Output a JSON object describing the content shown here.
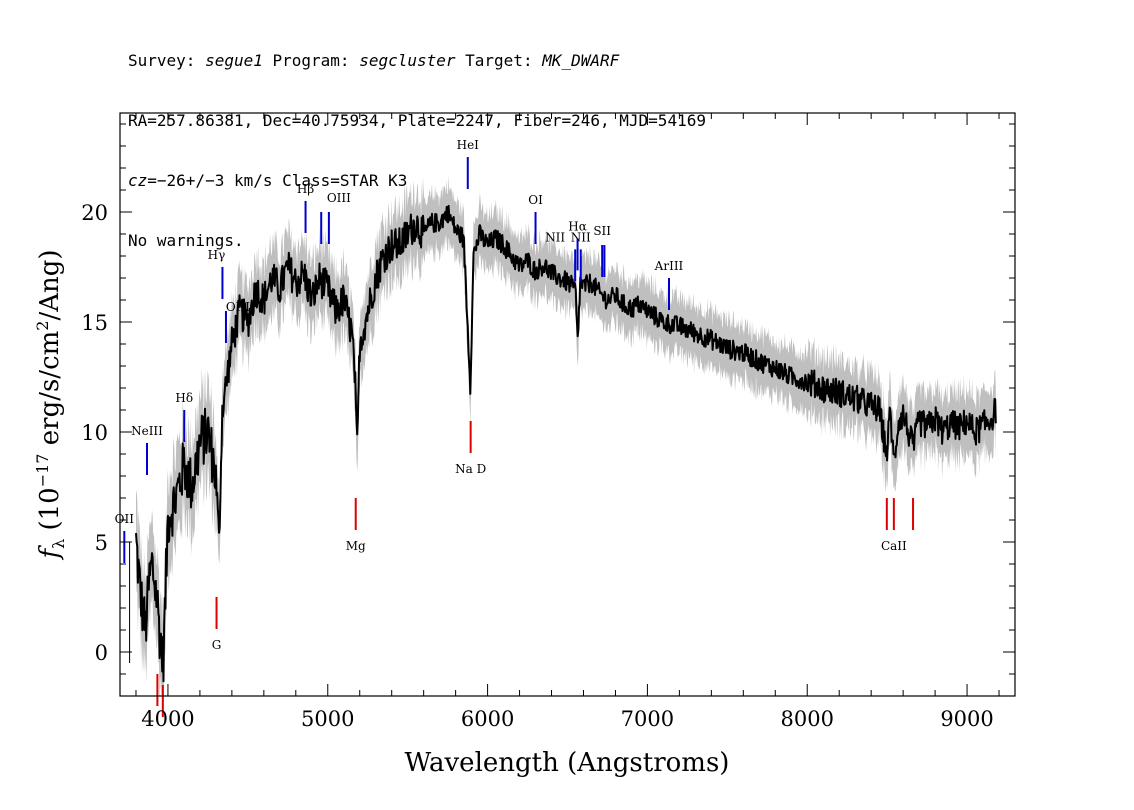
{
  "header": {
    "line1": {
      "survey_label": "Survey: ",
      "survey": "segue1",
      "program_label": " Program: ",
      "program": "segcluster",
      "target_label": " Target: ",
      "target": "MK_DWARF"
    },
    "line2": "RA=257.86381, Dec=40.75934, Plate=2247, Fiber=246, MJD=54169",
    "line3": {
      "cz_label": "cz",
      "cz_value": "=−26+/−3",
      "rest": " km/s Class=STAR K3"
    },
    "line4": "No warnings."
  },
  "colors": {
    "flux": "#000000",
    "error_band": "#bfbfbf",
    "emission": "#0000cc",
    "absorption": "#dd0000"
  },
  "chart_data": {
    "type": "line",
    "xlabel": "Wavelength (Angstroms)",
    "ylabel": "f_λ (10^-17 erg/s/cm^2/Ang)",
    "ylabel_parts": {
      "f": "f",
      "lambda": "λ",
      "open": " (10",
      "exp": "−17",
      "mid": " erg/s/cm",
      "exp2": "2",
      "close": "/Ang)"
    },
    "xlim": [
      3700,
      9300
    ],
    "ylim": [
      -2,
      24.5
    ],
    "xticks": [
      4000,
      5000,
      6000,
      7000,
      8000,
      9000
    ],
    "yticks": [
      0,
      5,
      10,
      15,
      20
    ],
    "series": [
      {
        "x": [
          3800,
          3830,
          3860,
          3880,
          3900,
          3930,
          3950,
          3970,
          4000,
          4050,
          4100,
          4150,
          4200,
          4250,
          4300,
          4320,
          4340,
          4400,
          4450,
          4500,
          4550,
          4600,
          4650,
          4700,
          4750,
          4800,
          4850,
          4900,
          4950,
          5000,
          5050,
          5100,
          5150,
          5170,
          5183,
          5200,
          5250,
          5300,
          5350,
          5400,
          5450,
          5500,
          5550,
          5600,
          5650,
          5700,
          5750,
          5800,
          5850,
          5880,
          5893,
          5910,
          5950,
          6000,
          6050,
          6100,
          6150,
          6200,
          6250,
          6300,
          6350,
          6400,
          6450,
          6500,
          6550,
          6563,
          6580,
          6600,
          6650,
          6700,
          6750,
          6800,
          6850,
          6900,
          6950,
          7000,
          7100,
          7200,
          7300,
          7400,
          7500,
          7600,
          7700,
          7800,
          7900,
          8000,
          8100,
          8200,
          8300,
          8400,
          8450,
          8498,
          8520,
          8542,
          8570,
          8600,
          8662,
          8700,
          8750,
          8800,
          8850,
          8900,
          8950,
          9000,
          9050,
          9100,
          9150,
          9180
        ],
        "y": [
          5.0,
          2.5,
          1.0,
          3.0,
          4.0,
          2.5,
          0.8,
          -0.5,
          6.0,
          7.0,
          8.5,
          7.5,
          9.5,
          10.0,
          8.0,
          5.0,
          11.0,
          14.0,
          15.5,
          15.0,
          16.5,
          16.0,
          17.0,
          16.5,
          17.5,
          16.8,
          17.2,
          16.0,
          17.0,
          16.5,
          15.5,
          16.0,
          14.5,
          12.5,
          9.0,
          14.0,
          15.5,
          17.0,
          18.0,
          18.5,
          18.5,
          19.0,
          19.5,
          19.0,
          19.5,
          19.5,
          20.0,
          19.2,
          18.8,
          14.0,
          12.0,
          18.0,
          19.0,
          18.5,
          18.8,
          18.5,
          18.0,
          17.5,
          17.8,
          17.3,
          17.6,
          17.2,
          17.0,
          16.8,
          16.5,
          14.0,
          16.8,
          16.6,
          16.8,
          16.3,
          16.0,
          16.2,
          15.8,
          15.6,
          15.8,
          15.5,
          15.0,
          14.8,
          14.5,
          14.2,
          13.8,
          13.6,
          13.2,
          12.9,
          12.5,
          12.3,
          12.0,
          11.8,
          11.5,
          11.2,
          11.0,
          9.0,
          11.0,
          8.5,
          10.5,
          10.8,
          9.3,
          10.5,
          10.2,
          10.6,
          10.0,
          10.4,
          10.2,
          10.5,
          10.0,
          10.3,
          10.6,
          11.0
        ]
      }
    ],
    "emission_lines": [
      {
        "label": "OII",
        "x": 3727,
        "y": 5.5
      },
      {
        "label": "NeIII",
        "x": 3869,
        "y": 9.5
      },
      {
        "label": "Hδ",
        "x": 4102,
        "y": 11.0
      },
      {
        "label": "Hγ",
        "x": 4341,
        "y": 17.5
      },
      {
        "label": "OIII",
        "x": 4363,
        "y": 15.5
      },
      {
        "label": "Hβ",
        "x": 4861,
        "y": 20.5
      },
      {
        "label": "OIII",
        "x": 4959,
        "y": 20.0
      },
      {
        "label": "OIII",
        "x": 5007,
        "y": 20.0
      },
      {
        "label": "HeI",
        "x": 5876,
        "y": 22.5
      },
      {
        "label": "OI",
        "x": 6300,
        "y": 20.0
      },
      {
        "label": "NII",
        "x": 6548,
        "y": 18.3
      },
      {
        "label": "Hα",
        "x": 6563,
        "y": 18.8
      },
      {
        "label": "NII",
        "x": 6583,
        "y": 18.3
      },
      {
        "label": "SII",
        "x": 6717,
        "y": 18.5
      },
      {
        "label": "SII",
        "x": 6731,
        "y": 18.5
      },
      {
        "label": "ArIII",
        "x": 7135,
        "y": 17.0
      }
    ],
    "absorption_lines": [
      {
        "label": "",
        "x": 3934,
        "y": -1.0
      },
      {
        "label": "",
        "x": 3968,
        "y": -1.5
      },
      {
        "label": "G",
        "x": 4304,
        "y": 2.5
      },
      {
        "label": "Mg",
        "x": 5175,
        "y": 7.0
      },
      {
        "label": "Na D",
        "x": 5894,
        "y": 10.5
      },
      {
        "label": "",
        "x": 8498,
        "y": 7.0
      },
      {
        "label": "CaII",
        "x": 8542,
        "y": 7.0
      },
      {
        "label": "",
        "x": 8662,
        "y": 7.0
      }
    ]
  }
}
